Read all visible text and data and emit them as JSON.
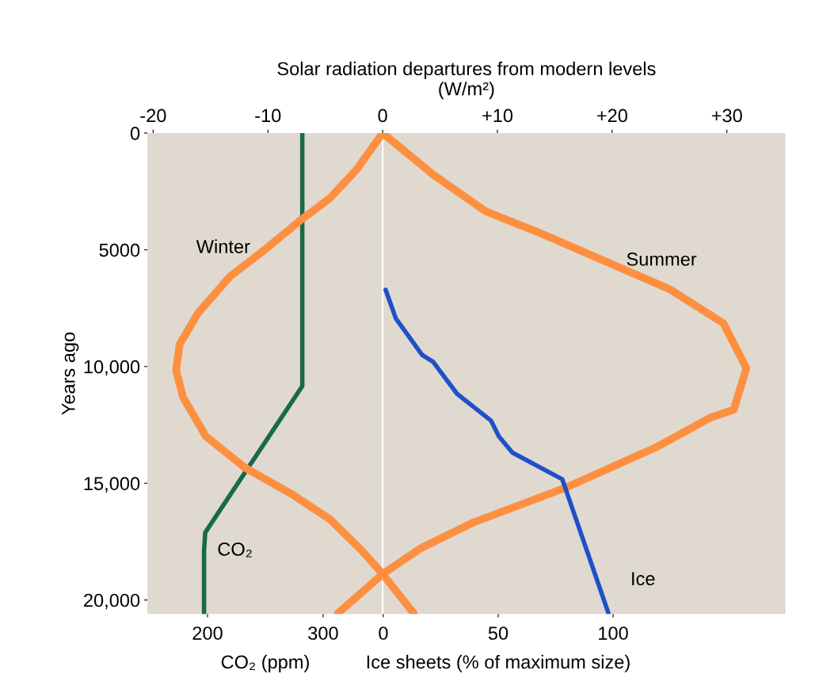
{
  "chart_data": [
    {
      "type": "line",
      "x2label": "Solar radiation departures from modern levels\n(W/m²)",
      "xlabel": "CO₂ (ppm)",
      "ylabel": "Years ago",
      "ylim": [
        20600,
        0
      ],
      "yticks": [
        0,
        5000,
        {
          "value": 10000,
          "label": "10,000"
        },
        {
          "value": 15000,
          "label": "15,000"
        },
        {
          "value": 20000,
          "label": "20,000"
        }
      ],
      "xlim": [
        148,
        700
      ],
      "xticks": [
        200,
        300
      ],
      "x2lim": [
        -20.5,
        35.1
      ],
      "x2ticks": [
        -20,
        -10,
        0,
        {
          "value": 10,
          "label": "+10"
        },
        {
          "value": 20,
          "label": "+20"
        },
        {
          "value": 30,
          "label": "+30"
        }
      ],
      "grid": false,
      "legend": false,
      "line_style": "solid",
      "marker": "none",
      "ref_lines": [
        {
          "axis": "x2",
          "value": 0,
          "color": "#ffffff"
        }
      ],
      "series": [
        {
          "name": "Winter",
          "color": "#fd9040",
          "axis": "x2",
          "x": [
            0,
            -2.3,
            -4.6,
            -7.3,
            -10.1,
            -13.3,
            -16.1,
            -17.7,
            -18.0,
            -17.4,
            -15.4,
            -12.0,
            -8.0,
            -4.6,
            -1.8,
            0,
            2.7
          ],
          "values": [
            0,
            1580,
            2790,
            3790,
            4930,
            6140,
            7720,
            9060,
            10170,
            11310,
            12990,
            14330,
            15440,
            16540,
            17890,
            18890,
            20570
          ]
        },
        {
          "name": "Summer",
          "color": "#fd9040",
          "axis": "x2",
          "x": [
            0,
            4.4,
            9.0,
            13.6,
            19.3,
            25.1,
            29.7,
            31.7,
            30.6,
            28.6,
            24.0,
            15.9,
            7.9,
            3.3,
            0,
            -3.9
          ],
          "values": [
            0,
            1780,
            3360,
            4260,
            5470,
            6710,
            8150,
            10070,
            11850,
            12180,
            13420,
            15200,
            16680,
            17790,
            18890,
            20570
          ]
        },
        {
          "name": "CO₂",
          "color": "#1a6a4a",
          "x": [
            282,
            282,
            198,
            197,
            197
          ],
          "values": [
            0,
            10840,
            17110,
            17890,
            20570
          ]
        }
      ]
    },
    {
      "type": "line",
      "xlabel": "Ice sheets (% of maximum size)",
      "ylim": [
        20600,
        0
      ],
      "xlim": [
        0,
        175
      ],
      "xticks": [
        0,
        50,
        100
      ],
      "tick_labels": "x",
      "grid": false,
      "legend": false,
      "line_style": "solid",
      "marker": "none",
      "series": [
        {
          "name": "Ice",
          "color": "#2050c8",
          "x": [
            1,
            5.5,
            16.9,
            21.7,
            32.1,
            46.9,
            50.3,
            56.2,
            77.9,
            98
          ],
          "values": [
            6710,
            7950,
            9500,
            9800,
            11170,
            12320,
            12990,
            13690,
            14830,
            20570
          ]
        }
      ]
    }
  ]
}
